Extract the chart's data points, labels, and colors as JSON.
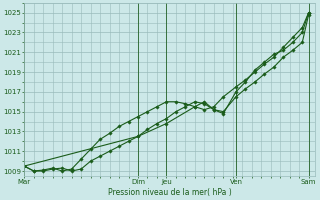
{
  "title": "",
  "xlabel": "Pression niveau de la mer( hPa )",
  "bg_color": "#cce8e8",
  "grid_color": "#99bbbb",
  "line_color": "#1a5c1a",
  "ylim": [
    1008.5,
    1026.0
  ],
  "yticks": [
    1009,
    1011,
    1013,
    1015,
    1017,
    1019,
    1021,
    1023,
    1025
  ],
  "day_labels": [
    "Mar",
    "Dim",
    "Jeu",
    "Ven",
    "Sam"
  ],
  "vline_positions": [
    0.0,
    3.6,
    4.5,
    6.7,
    9.0
  ],
  "xlim": [
    0.0,
    9.2
  ],
  "series1_x": [
    0.0,
    0.3,
    0.6,
    0.9,
    1.2,
    1.5,
    1.8,
    2.1,
    2.4,
    2.7,
    3.0,
    3.3,
    3.6,
    3.9,
    4.2,
    4.5,
    4.8,
    5.1,
    5.4,
    5.7,
    6.0,
    6.3,
    6.7,
    7.0,
    7.3,
    7.6,
    7.9,
    8.2,
    8.5,
    8.8,
    9.0
  ],
  "series1_y": [
    1009.5,
    1009.0,
    1009.0,
    1009.2,
    1009.3,
    1009.0,
    1009.2,
    1010.0,
    1010.5,
    1011.0,
    1011.5,
    1012.0,
    1012.5,
    1013.2,
    1013.8,
    1014.3,
    1015.0,
    1015.5,
    1016.0,
    1015.8,
    1015.2,
    1015.0,
    1016.5,
    1017.3,
    1018.0,
    1018.8,
    1019.5,
    1020.5,
    1021.2,
    1022.0,
    1024.8
  ],
  "series2_x": [
    0.0,
    0.3,
    0.6,
    0.9,
    1.2,
    1.5,
    1.8,
    2.1,
    2.4,
    2.7,
    3.0,
    3.3,
    3.6,
    3.9,
    4.2,
    4.5,
    4.8,
    5.1,
    5.4,
    5.7,
    6.0,
    6.3,
    6.7,
    7.0,
    7.3,
    7.6,
    7.9,
    8.2,
    8.5,
    8.8,
    9.0
  ],
  "series2_y": [
    1009.5,
    1009.0,
    1009.1,
    1009.3,
    1009.0,
    1009.2,
    1010.2,
    1011.2,
    1012.2,
    1012.8,
    1013.5,
    1014.0,
    1014.5,
    1015.0,
    1015.5,
    1016.0,
    1016.0,
    1015.8,
    1015.5,
    1015.2,
    1015.5,
    1016.5,
    1017.5,
    1018.2,
    1019.0,
    1019.8,
    1020.5,
    1021.5,
    1022.5,
    1023.5,
    1025.0
  ],
  "series3_x": [
    0.0,
    3.6,
    4.5,
    5.4,
    5.7,
    6.0,
    6.3,
    6.7,
    7.0,
    7.3,
    7.6,
    7.9,
    8.2,
    8.5,
    8.8,
    9.0
  ],
  "series3_y": [
    1009.5,
    1012.5,
    1013.8,
    1015.5,
    1016.0,
    1015.2,
    1014.8,
    1017.0,
    1018.0,
    1019.2,
    1020.0,
    1020.8,
    1021.2,
    1022.0,
    1023.0,
    1025.0
  ]
}
